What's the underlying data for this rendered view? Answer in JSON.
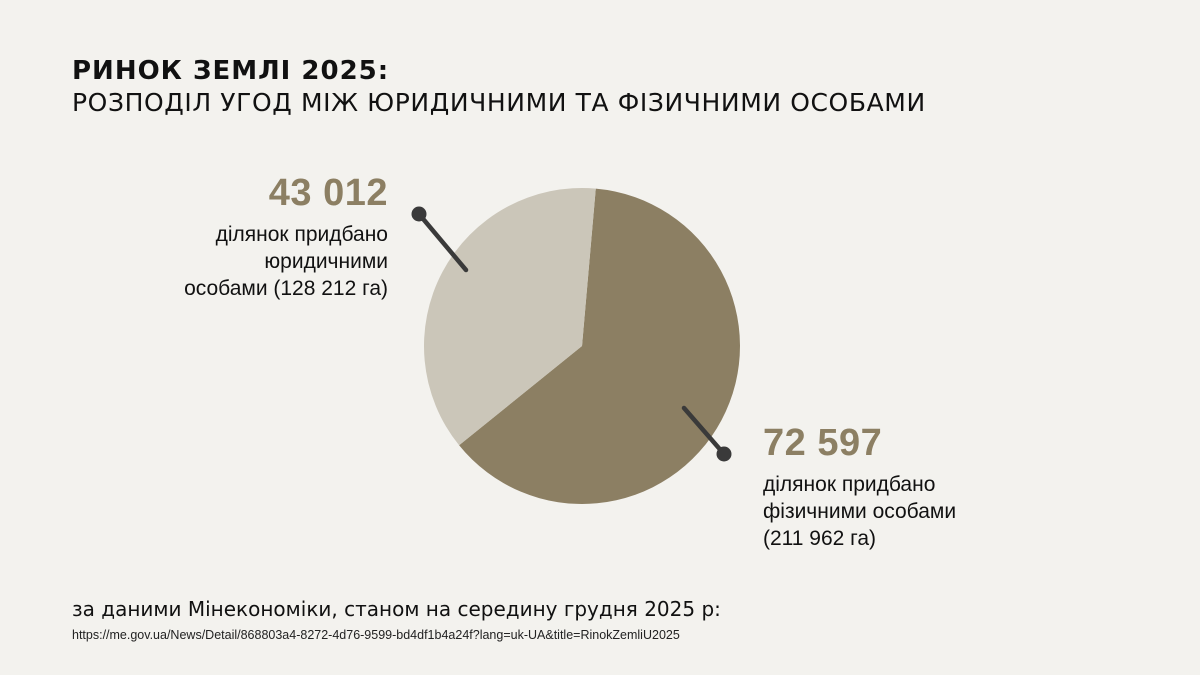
{
  "header": {
    "title": "РИНОК ЗЕМЛІ 2025:",
    "subtitle": "РОЗПОДІЛ УГОД МІЖ ЮРИДИЧНИМИ ТА ФІЗИЧНИМИ ОСОБАМИ"
  },
  "colors": {
    "background": "#f3f2ee",
    "legal_slice": "#cbc6b9",
    "individual_slice": "#8c7f63",
    "value_text": "#8c7f63",
    "pointer": "#3a3a3a"
  },
  "chart_data": {
    "type": "pie",
    "title": "РОЗПОДІЛ УГОД МІЖ ЮРИДИЧНИМИ ТА ФІЗИЧНИМИ ОСОБАМИ",
    "slices": [
      {
        "key": "legal",
        "value": 43012,
        "label": "43 012",
        "description": "ділянок придбано\nюридичними\nособами (128 212 га)",
        "area_ha": 128212,
        "color": "#cbc6b9"
      },
      {
        "key": "individual",
        "value": 72597,
        "label": "72 597",
        "description": "ділянок придбано\nфізичними особами\n(211 962  га)",
        "area_ha": 211962,
        "color": "#8c7f63"
      }
    ]
  },
  "footer": {
    "source": "за даними Мінекономіки, станом на середину грудня 2025 р:",
    "url": "https://me.gov.ua/News/Detail/868803a4-8272-4d76-9599-bd4df1b4a24f?lang=uk-UA&title=RinokZemliU2025"
  }
}
